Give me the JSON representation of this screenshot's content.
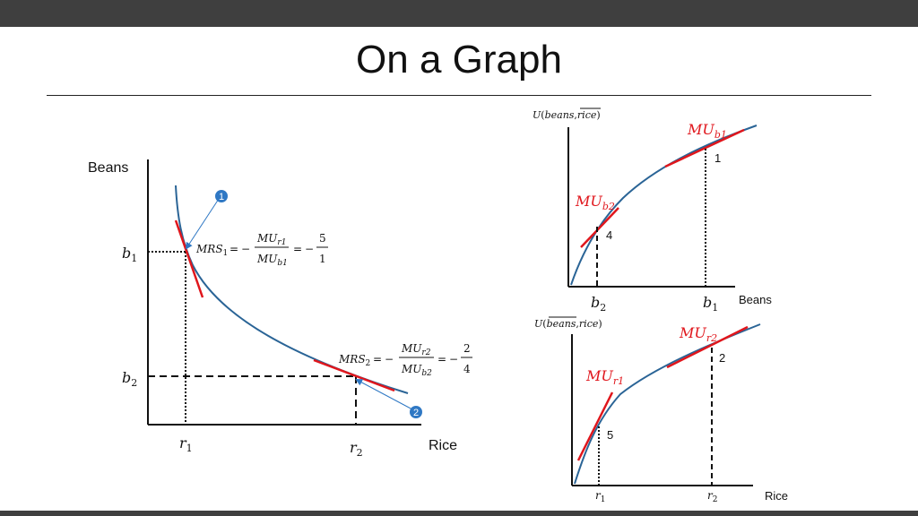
{
  "slide": {
    "title": "On a Graph"
  },
  "main_graph": {
    "y_axis_label": "Beans",
    "x_axis_label": "Rice",
    "y_ticks": {
      "b1": {
        "base": "b",
        "sub": "1"
      },
      "b2": {
        "base": "b",
        "sub": "2"
      }
    },
    "x_ticks": {
      "r1": {
        "base": "r",
        "sub": "1"
      },
      "r2": {
        "base": "r",
        "sub": "2"
      }
    },
    "badges": {
      "first": "1",
      "second": "2"
    },
    "mrs1": {
      "lhs": "MRS",
      "lhs_sub": "1",
      "num": "MU",
      "num_sub": "r1",
      "den": "MU",
      "den_sub": "b1",
      "num_val": "5",
      "den_val": "1"
    },
    "mrs2": {
      "lhs": "MRS",
      "lhs_sub": "2",
      "num": "MU",
      "num_sub": "r2",
      "den": "MU",
      "den_sub": "b2",
      "num_val": "2",
      "den_val": "4"
    },
    "ops": {
      "eq": "=",
      "neg": "−"
    }
  },
  "beans_graph": {
    "title": {
      "func": "U",
      "open": "(",
      "var1": "beans",
      "comma": ",",
      "var2": "rice",
      "close": ")"
    },
    "x_axis_label": "Beans",
    "x_ticks": {
      "b2": {
        "base": "b",
        "sub": "2"
      },
      "b1": {
        "base": "b",
        "sub": "1"
      }
    },
    "mu_b1": {
      "base": "MU",
      "sub": "b1"
    },
    "mu_b2": {
      "base": "MU",
      "sub": "b2"
    },
    "slope_labels": {
      "at_b1": "1",
      "at_b2": "4"
    }
  },
  "rice_graph": {
    "title": {
      "func": "U",
      "open": "(",
      "var1": "beans",
      "comma": ",",
      "var2": "rice",
      "close": ")"
    },
    "x_axis_label": "Rice",
    "x_ticks": {
      "r1": {
        "base": "r",
        "sub": "1"
      },
      "r2": {
        "base": "r",
        "sub": "2"
      }
    },
    "mu_r2": {
      "base": "MU",
      "sub": "r2"
    },
    "mu_r1": {
      "base": "MU",
      "sub": "r1"
    },
    "slope_labels": {
      "at_r2": "2",
      "at_r1": "5"
    }
  },
  "colors": {
    "curve": "#2a6496",
    "tangent": "#e0161c",
    "axis": "#111111",
    "badge": "#2f78c4"
  }
}
